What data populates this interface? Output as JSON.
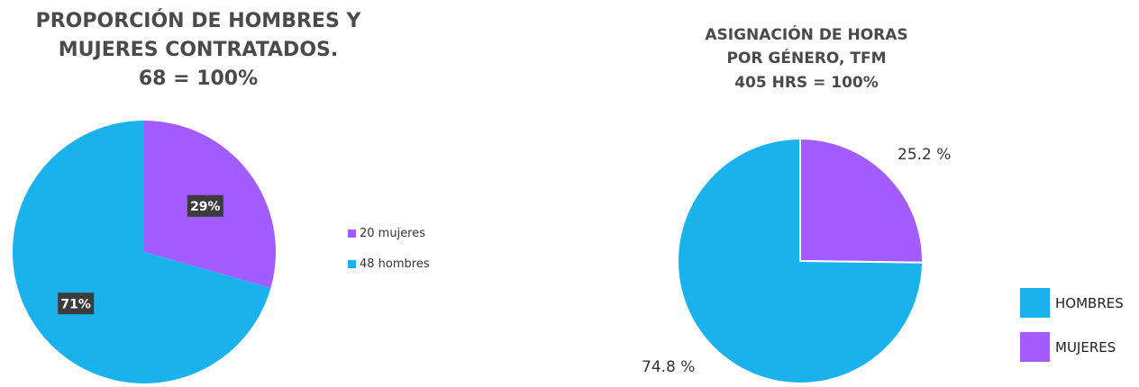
{
  "charts": [
    {
      "title_lines": [
        "PROPORCIÓN DE HOMBRES Y",
        "MUJERES CONTRATADOS.",
        "68  = 100%"
      ]
    },
    {
      "title_lines": [
        "ASIGNACIÓN DE HORAS",
        "POR GÉNERO, TFM",
        "405 HRS = 100%"
      ],
      "outer_labels": [
        "25.2 %",
        "74.8 %"
      ],
      "legend": [
        {
          "label": "HOMBRES",
          "color": "#1AB2EC"
        },
        {
          "label": "MUJERES",
          "color": "#A35CFF"
        }
      ]
    }
  ],
  "chart_data": [
    {
      "type": "pie",
      "title": "PROPORCIÓN DE HOMBRES Y MUJERES CONTRATADOS. 68  = 100%",
      "slices": [
        {
          "label": "20 mujeres",
          "value": 20,
          "percent_label": "29%",
          "color": "#A35CFF"
        },
        {
          "label": "48 hombres",
          "value": 48,
          "percent_label": "71%",
          "color": "#1AB2EC"
        }
      ],
      "legend_position": "right"
    },
    {
      "type": "pie",
      "title": "ASIGNACIÓN DE HORAS POR GÉNERO, TFM 405 HRS = 100%",
      "slices": [
        {
          "label": "MUJERES",
          "value": 25.2,
          "percent_label": "25.2 %",
          "color": "#A35CFF"
        },
        {
          "label": "HOMBRES",
          "value": 74.8,
          "percent_label": "74.8 %",
          "color": "#1AB2EC"
        }
      ],
      "legend_position": "bottom-right"
    }
  ]
}
